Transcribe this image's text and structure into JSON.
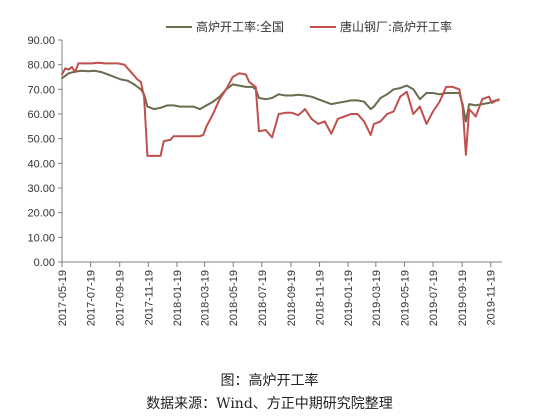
{
  "chart_data": {
    "type": "line",
    "x_type": "date",
    "xlim": [
      "2017-05-19",
      "2019-12-13"
    ],
    "ylim": [
      0,
      90
    ],
    "grid": false,
    "legend_position": "top",
    "y_ticks": [
      "0.00",
      "10.00",
      "20.00",
      "30.00",
      "40.00",
      "50.00",
      "60.00",
      "70.00",
      "80.00",
      "90.00"
    ],
    "x_ticks": [
      "2017-05-19",
      "2017-07-19",
      "2017-09-19",
      "2017-11-19",
      "2018-01-19",
      "2018-03-19",
      "2018-05-19",
      "2018-07-19",
      "2018-09-19",
      "2018-11-19",
      "2019-01-19",
      "2019-03-19",
      "2019-05-19",
      "2019-07-19",
      "2019-09-19",
      "2019-11-19"
    ],
    "series": [
      {
        "name": "高炉开工率:全国",
        "color": "#6b6b4f",
        "points": [
          [
            "2017-05-19",
            74.5
          ],
          [
            "2017-06-02",
            76.5
          ],
          [
            "2017-06-16",
            77.2
          ],
          [
            "2017-06-30",
            77.5
          ],
          [
            "2017-07-14",
            77.3
          ],
          [
            "2017-07-28",
            77.5
          ],
          [
            "2017-08-11",
            77.0
          ],
          [
            "2017-08-25",
            76.0
          ],
          [
            "2017-09-08",
            75.0
          ],
          [
            "2017-09-22",
            74.0
          ],
          [
            "2017-10-06",
            73.5
          ],
          [
            "2017-10-20",
            72.0
          ],
          [
            "2017-11-03",
            70.0
          ],
          [
            "2017-11-10",
            68.0
          ],
          [
            "2017-11-17",
            63.0
          ],
          [
            "2017-12-01",
            62.0
          ],
          [
            "2017-12-15",
            62.5
          ],
          [
            "2017-12-29",
            63.5
          ],
          [
            "2018-01-12",
            63.5
          ],
          [
            "2018-01-26",
            63.0
          ],
          [
            "2018-02-09",
            63.0
          ],
          [
            "2018-02-23",
            63.0
          ],
          [
            "2018-03-09",
            62.0
          ],
          [
            "2018-03-23",
            63.5
          ],
          [
            "2018-04-06",
            65.0
          ],
          [
            "2018-04-20",
            67.0
          ],
          [
            "2018-05-04",
            70.0
          ],
          [
            "2018-05-18",
            72.0
          ],
          [
            "2018-06-01",
            71.5
          ],
          [
            "2018-06-15",
            71.0
          ],
          [
            "2018-06-29",
            71.0
          ],
          [
            "2018-07-06",
            70.0
          ],
          [
            "2018-07-13",
            66.5
          ],
          [
            "2018-07-27",
            66.0
          ],
          [
            "2018-08-10",
            66.5
          ],
          [
            "2018-08-24",
            68.0
          ],
          [
            "2018-09-07",
            67.5
          ],
          [
            "2018-09-21",
            67.5
          ],
          [
            "2018-10-05",
            67.8
          ],
          [
            "2018-10-19",
            67.5
          ],
          [
            "2018-11-02",
            67.0
          ],
          [
            "2018-11-16",
            66.0
          ],
          [
            "2018-11-30",
            65.0
          ],
          [
            "2018-12-14",
            64.0
          ],
          [
            "2018-12-28",
            64.5
          ],
          [
            "2019-01-11",
            65.0
          ],
          [
            "2019-01-25",
            65.5
          ],
          [
            "2019-02-08",
            65.5
          ],
          [
            "2019-02-22",
            65.0
          ],
          [
            "2019-03-08",
            62.0
          ],
          [
            "2019-03-15",
            63.0
          ],
          [
            "2019-03-29",
            66.5
          ],
          [
            "2019-04-12",
            68.0
          ],
          [
            "2019-04-26",
            70.0
          ],
          [
            "2019-05-10",
            70.5
          ],
          [
            "2019-05-24",
            71.5
          ],
          [
            "2019-06-07",
            70.0
          ],
          [
            "2019-06-21",
            66.0
          ],
          [
            "2019-07-05",
            68.5
          ],
          [
            "2019-07-19",
            68.5
          ],
          [
            "2019-08-02",
            68.0
          ],
          [
            "2019-08-16",
            68.5
          ],
          [
            "2019-08-30",
            68.5
          ],
          [
            "2019-09-13",
            68.5
          ],
          [
            "2019-09-20",
            64.0
          ],
          [
            "2019-09-27",
            57.0
          ],
          [
            "2019-10-04",
            64.0
          ],
          [
            "2019-10-18",
            63.5
          ],
          [
            "2019-11-01",
            64.0
          ],
          [
            "2019-11-15",
            64.5
          ],
          [
            "2019-11-29",
            65.5
          ],
          [
            "2019-12-06",
            65.5
          ]
        ]
      },
      {
        "name": "唐山钢厂:高炉开工率",
        "color": "#c0504d",
        "points": [
          [
            "2017-05-19",
            76.0
          ],
          [
            "2017-05-26",
            78.5
          ],
          [
            "2017-06-02",
            78.0
          ],
          [
            "2017-06-09",
            79.0
          ],
          [
            "2017-06-16",
            77.0
          ],
          [
            "2017-06-23",
            80.5
          ],
          [
            "2017-07-07",
            80.5
          ],
          [
            "2017-07-21",
            80.5
          ],
          [
            "2017-08-04",
            80.8
          ],
          [
            "2017-08-18",
            80.5
          ],
          [
            "2017-09-01",
            80.5
          ],
          [
            "2017-09-15",
            80.5
          ],
          [
            "2017-09-29",
            80.0
          ],
          [
            "2017-10-13",
            77.0
          ],
          [
            "2017-10-27",
            74.0
          ],
          [
            "2017-11-03",
            73.0
          ],
          [
            "2017-11-10",
            67.0
          ],
          [
            "2017-11-17",
            43.0
          ],
          [
            "2017-12-01",
            43.0
          ],
          [
            "2017-12-15",
            43.0
          ],
          [
            "2017-12-22",
            49.0
          ],
          [
            "2018-01-05",
            49.5
          ],
          [
            "2018-01-12",
            51.0
          ],
          [
            "2018-01-26",
            51.0
          ],
          [
            "2018-02-09",
            51.0
          ],
          [
            "2018-02-23",
            51.0
          ],
          [
            "2018-03-09",
            51.0
          ],
          [
            "2018-03-16",
            51.5
          ],
          [
            "2018-03-23",
            55.0
          ],
          [
            "2018-04-06",
            60.0
          ],
          [
            "2018-04-20",
            66.0
          ],
          [
            "2018-05-04",
            70.0
          ],
          [
            "2018-05-18",
            75.0
          ],
          [
            "2018-06-01",
            76.5
          ],
          [
            "2018-06-15",
            76.0
          ],
          [
            "2018-06-22",
            73.0
          ],
          [
            "2018-07-06",
            71.0
          ],
          [
            "2018-07-13",
            53.0
          ],
          [
            "2018-07-27",
            53.5
          ],
          [
            "2018-08-10",
            50.5
          ],
          [
            "2018-08-24",
            60.0
          ],
          [
            "2018-09-07",
            60.5
          ],
          [
            "2018-09-21",
            60.5
          ],
          [
            "2018-10-05",
            59.5
          ],
          [
            "2018-10-19",
            62.0
          ],
          [
            "2018-11-02",
            58.0
          ],
          [
            "2018-11-16",
            56.0
          ],
          [
            "2018-11-30",
            57.0
          ],
          [
            "2018-12-14",
            52.0
          ],
          [
            "2018-12-28",
            58.0
          ],
          [
            "2019-01-11",
            59.0
          ],
          [
            "2019-01-25",
            60.0
          ],
          [
            "2019-02-08",
            60.0
          ],
          [
            "2019-02-22",
            57.0
          ],
          [
            "2019-03-08",
            51.5
          ],
          [
            "2019-03-15",
            56.0
          ],
          [
            "2019-03-29",
            57.0
          ],
          [
            "2019-04-12",
            60.0
          ],
          [
            "2019-04-26",
            61.0
          ],
          [
            "2019-05-10",
            67.0
          ],
          [
            "2019-05-24",
            69.0
          ],
          [
            "2019-06-07",
            60.0
          ],
          [
            "2019-06-21",
            63.0
          ],
          [
            "2019-07-05",
            56.0
          ],
          [
            "2019-07-19",
            61.0
          ],
          [
            "2019-08-02",
            65.0
          ],
          [
            "2019-08-16",
            71.0
          ],
          [
            "2019-08-30",
            71.0
          ],
          [
            "2019-09-13",
            70.0
          ],
          [
            "2019-09-20",
            63.0
          ],
          [
            "2019-09-27",
            43.5
          ],
          [
            "2019-10-04",
            62.0
          ],
          [
            "2019-10-18",
            59.0
          ],
          [
            "2019-11-01",
            66.0
          ],
          [
            "2019-11-15",
            67.0
          ],
          [
            "2019-11-22",
            64.5
          ],
          [
            "2019-12-06",
            66.0
          ]
        ]
      }
    ]
  },
  "caption": {
    "title": "图：高炉开工率",
    "source": "数据来源：Wind、方正中期研究院整理"
  }
}
